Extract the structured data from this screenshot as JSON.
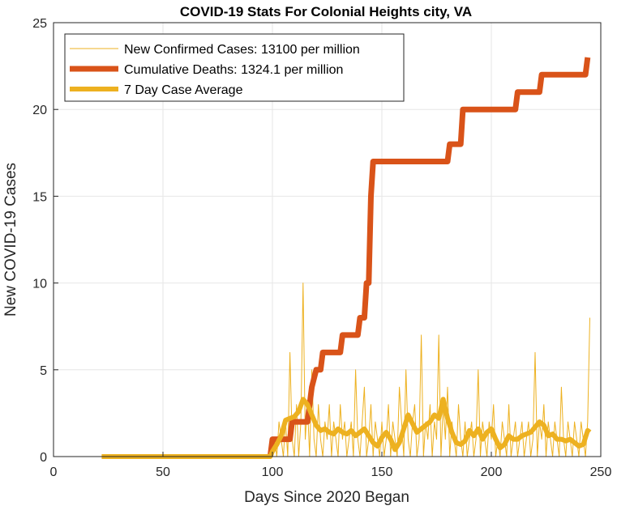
{
  "chart_data": {
    "type": "line",
    "title": "COVID-19 Stats For Colonial Heights city, VA",
    "xlabel": "Days Since 2020 Began",
    "ylabel": "New COVID-19 Cases",
    "xlim": [
      0,
      250
    ],
    "ylim": [
      0,
      25
    ],
    "xticks": [
      0,
      50,
      100,
      150,
      200,
      250
    ],
    "yticks": [
      0,
      5,
      10,
      15,
      20,
      25
    ],
    "grid": true,
    "legend_position": "top-left",
    "series": [
      {
        "name": "New Confirmed Cases: 13100 per million",
        "color": "#EDB120",
        "style": "thin",
        "points": [
          [
            22,
            0
          ],
          [
            99,
            0
          ],
          [
            100,
            0
          ],
          [
            101,
            1
          ],
          [
            102,
            0
          ],
          [
            103,
            2
          ],
          [
            104,
            1
          ],
          [
            105,
            0
          ],
          [
            106,
            2
          ],
          [
            107,
            0
          ],
          [
            108,
            6
          ],
          [
            109,
            1
          ],
          [
            110,
            0
          ],
          [
            111,
            3
          ],
          [
            112,
            0
          ],
          [
            113,
            2
          ],
          [
            114,
            10
          ],
          [
            115,
            1
          ],
          [
            116,
            3
          ],
          [
            117,
            0
          ],
          [
            118,
            5
          ],
          [
            119,
            1
          ],
          [
            120,
            0
          ],
          [
            121,
            3
          ],
          [
            122,
            1
          ],
          [
            123,
            0
          ],
          [
            124,
            2
          ],
          [
            125,
            1
          ],
          [
            126,
            3
          ],
          [
            127,
            0
          ],
          [
            128,
            2
          ],
          [
            129,
            1
          ],
          [
            130,
            0
          ],
          [
            131,
            3
          ],
          [
            132,
            1
          ],
          [
            133,
            2
          ],
          [
            134,
            0
          ],
          [
            135,
            1
          ],
          [
            136,
            2
          ],
          [
            137,
            0
          ],
          [
            138,
            5
          ],
          [
            139,
            1
          ],
          [
            140,
            0
          ],
          [
            141,
            2
          ],
          [
            142,
            4
          ],
          [
            143,
            0
          ],
          [
            144,
            1
          ],
          [
            145,
            3
          ],
          [
            146,
            0
          ],
          [
            147,
            2
          ],
          [
            148,
            1
          ],
          [
            149,
            0
          ],
          [
            150,
            2
          ],
          [
            151,
            0
          ],
          [
            152,
            1
          ],
          [
            153,
            3
          ],
          [
            154,
            0
          ],
          [
            155,
            2
          ],
          [
            156,
            1
          ],
          [
            157,
            0
          ],
          [
            158,
            4
          ],
          [
            159,
            2
          ],
          [
            160,
            0
          ],
          [
            161,
            5
          ],
          [
            162,
            1
          ],
          [
            163,
            0
          ],
          [
            164,
            2
          ],
          [
            165,
            3
          ],
          [
            166,
            0
          ],
          [
            167,
            1
          ],
          [
            168,
            7
          ],
          [
            169,
            0
          ],
          [
            170,
            2
          ],
          [
            171,
            1
          ],
          [
            172,
            3
          ],
          [
            173,
            0
          ],
          [
            174,
            2
          ],
          [
            175,
            1
          ],
          [
            176,
            7
          ],
          [
            177,
            0
          ],
          [
            178,
            3
          ],
          [
            179,
            1
          ],
          [
            180,
            4
          ],
          [
            181,
            0
          ],
          [
            182,
            2
          ],
          [
            183,
            1
          ],
          [
            184,
            0
          ],
          [
            185,
            3
          ],
          [
            186,
            1
          ],
          [
            187,
            0
          ],
          [
            188,
            2
          ],
          [
            189,
            0
          ],
          [
            190,
            1
          ],
          [
            191,
            2
          ],
          [
            192,
            0
          ],
          [
            193,
            1
          ],
          [
            194,
            5
          ],
          [
            195,
            0
          ],
          [
            196,
            2
          ],
          [
            197,
            1
          ],
          [
            198,
            0
          ],
          [
            199,
            2
          ],
          [
            200,
            1
          ],
          [
            201,
            3
          ],
          [
            202,
            0
          ],
          [
            203,
            1
          ],
          [
            204,
            0
          ],
          [
            205,
            2
          ],
          [
            206,
            1
          ],
          [
            207,
            0
          ],
          [
            208,
            3
          ],
          [
            209,
            0
          ],
          [
            210,
            1
          ],
          [
            211,
            2
          ],
          [
            212,
            0
          ],
          [
            213,
            1
          ],
          [
            214,
            2
          ],
          [
            215,
            0
          ],
          [
            216,
            1
          ],
          [
            217,
            2
          ],
          [
            218,
            0
          ],
          [
            219,
            1
          ],
          [
            220,
            6
          ],
          [
            221,
            0
          ],
          [
            222,
            2
          ],
          [
            223,
            1
          ],
          [
            224,
            3
          ],
          [
            225,
            0
          ],
          [
            226,
            2
          ],
          [
            227,
            1
          ],
          [
            228,
            0
          ],
          [
            229,
            2
          ],
          [
            230,
            1
          ],
          [
            231,
            0
          ],
          [
            232,
            4
          ],
          [
            233,
            1
          ],
          [
            234,
            0
          ],
          [
            235,
            2
          ],
          [
            236,
            1
          ],
          [
            237,
            0
          ],
          [
            238,
            2
          ],
          [
            239,
            1
          ],
          [
            240,
            0
          ],
          [
            241,
            2
          ],
          [
            242,
            1
          ],
          [
            243,
            0
          ],
          [
            244,
            2
          ],
          [
            245,
            8
          ]
        ]
      },
      {
        "name": "Cumulative Deaths: 1324.1 per million",
        "color": "#D95319",
        "style": "thick",
        "points": [
          [
            99,
            0
          ],
          [
            100,
            1
          ],
          [
            107,
            1
          ],
          [
            108,
            1
          ],
          [
            109,
            2
          ],
          [
            116,
            2
          ],
          [
            117,
            3
          ],
          [
            118,
            4
          ],
          [
            120,
            5
          ],
          [
            122,
            5
          ],
          [
            123,
            6
          ],
          [
            131,
            6
          ],
          [
            132,
            7
          ],
          [
            139,
            7
          ],
          [
            140,
            8
          ],
          [
            142,
            8
          ],
          [
            143,
            10
          ],
          [
            144,
            10
          ],
          [
            145,
            15
          ],
          [
            146,
            17
          ],
          [
            180,
            17
          ],
          [
            181,
            18
          ],
          [
            186,
            18
          ],
          [
            187,
            20
          ],
          [
            211,
            20
          ],
          [
            212,
            21
          ],
          [
            222,
            21
          ],
          [
            223,
            22
          ],
          [
            243,
            22
          ],
          [
            244,
            23
          ]
        ]
      },
      {
        "name": "7 Day Case Average",
        "color": "#EDB120",
        "style": "medium",
        "points": [
          [
            22,
            0
          ],
          [
            99,
            0
          ],
          [
            100,
            0.3
          ],
          [
            102,
            0.7
          ],
          [
            104,
            1.2
          ],
          [
            106,
            2.1
          ],
          [
            108,
            2.2
          ],
          [
            110,
            2.3
          ],
          [
            112,
            2.6
          ],
          [
            114,
            3.3
          ],
          [
            116,
            3.0
          ],
          [
            118,
            2.4
          ],
          [
            120,
            1.8
          ],
          [
            122,
            1.5
          ],
          [
            124,
            1.6
          ],
          [
            126,
            1.4
          ],
          [
            128,
            1.3
          ],
          [
            130,
            1.6
          ],
          [
            132,
            1.4
          ],
          [
            134,
            1.3
          ],
          [
            136,
            1.5
          ],
          [
            138,
            1.2
          ],
          [
            140,
            1.4
          ],
          [
            142,
            1.6
          ],
          [
            144,
            1.2
          ],
          [
            146,
            0.8
          ],
          [
            148,
            0.6
          ],
          [
            150,
            1.1
          ],
          [
            152,
            1.4
          ],
          [
            154,
            1.0
          ],
          [
            156,
            0.4
          ],
          [
            158,
            0.8
          ],
          [
            160,
            1.6
          ],
          [
            162,
            2.4
          ],
          [
            164,
            1.9
          ],
          [
            166,
            1.4
          ],
          [
            168,
            1.6
          ],
          [
            170,
            1.8
          ],
          [
            172,
            2.0
          ],
          [
            174,
            2.4
          ],
          [
            176,
            2.2
          ],
          [
            178,
            3.3
          ],
          [
            180,
            2.2
          ],
          [
            182,
            1.4
          ],
          [
            184,
            0.8
          ],
          [
            186,
            0.7
          ],
          [
            188,
            0.9
          ],
          [
            190,
            1.5
          ],
          [
            192,
            1.2
          ],
          [
            194,
            1.6
          ],
          [
            196,
            1.0
          ],
          [
            198,
            1.4
          ],
          [
            200,
            1.6
          ],
          [
            202,
            1.0
          ],
          [
            204,
            0.5
          ],
          [
            206,
            0.7
          ],
          [
            208,
            1.2
          ],
          [
            210,
            1.0
          ],
          [
            212,
            1.0
          ],
          [
            214,
            1.2
          ],
          [
            216,
            1.3
          ],
          [
            218,
            1.4
          ],
          [
            220,
            1.7
          ],
          [
            222,
            2.0
          ],
          [
            224,
            1.8
          ],
          [
            226,
            1.2
          ],
          [
            228,
            1.3
          ],
          [
            230,
            1.0
          ],
          [
            232,
            1.0
          ],
          [
            234,
            0.9
          ],
          [
            236,
            1.0
          ],
          [
            238,
            0.8
          ],
          [
            240,
            0.6
          ],
          [
            242,
            0.7
          ],
          [
            244,
            1.5
          ],
          [
            245,
            1.4
          ]
        ]
      }
    ]
  }
}
